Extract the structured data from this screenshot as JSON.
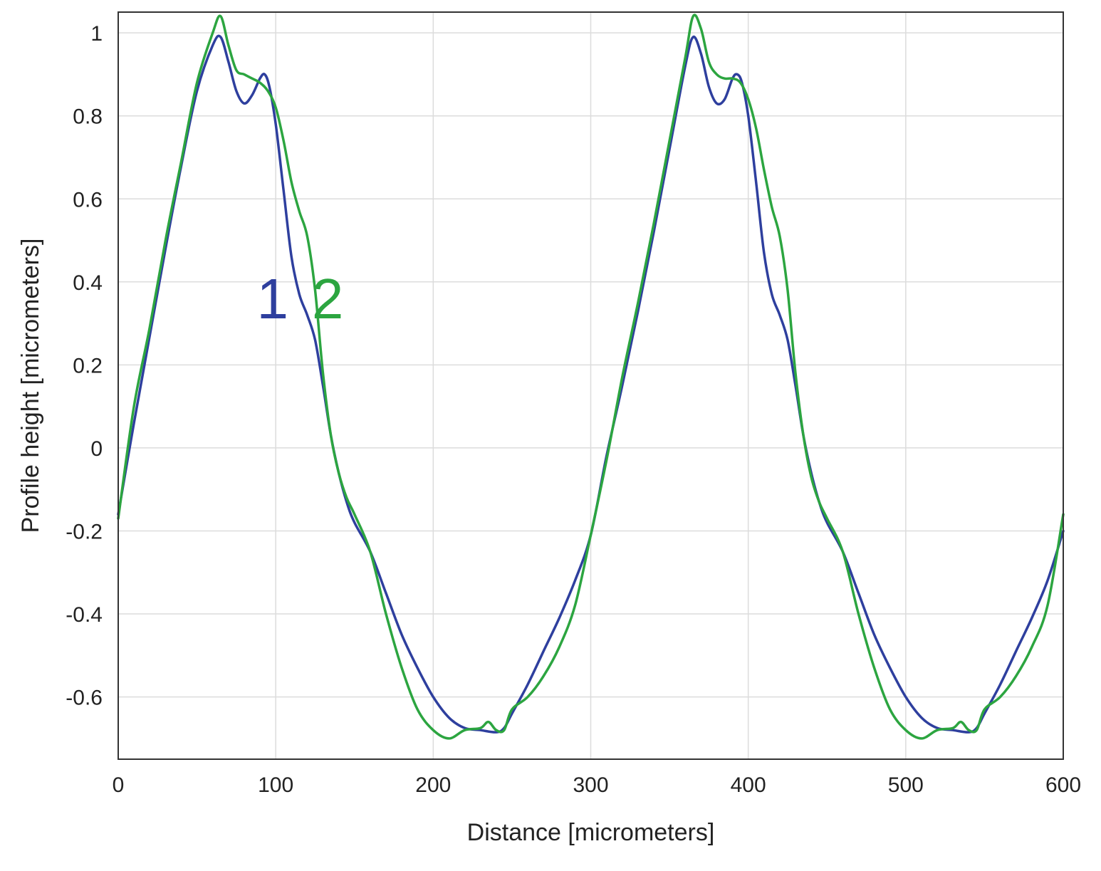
{
  "chart_data": {
    "type": "line",
    "title": "",
    "xlabel": "Distance [micrometers]",
    "ylabel": "Profile height [micrometers]",
    "xlim": [
      0,
      600
    ],
    "ylim": [
      -0.75,
      1.05
    ],
    "xticks": [
      0,
      100,
      200,
      300,
      400,
      500,
      600
    ],
    "yticks": [
      1,
      0.8,
      0.6,
      0.4,
      0.2,
      0,
      -0.2,
      -0.4,
      -0.6
    ],
    "xtick_labels": [
      "0",
      "100",
      "200",
      "300",
      "400",
      "500",
      "600"
    ],
    "ytick_labels": [
      "1",
      "0.8",
      "0.6",
      "0.4",
      "0.2",
      "0",
      "-0.2",
      "-0.4",
      "-0.6"
    ],
    "grid": true,
    "series": [
      {
        "name": "1",
        "color": "#2e3f9e",
        "label_pos": [
          98,
          0.36
        ],
        "x": [
          0,
          10,
          20,
          30,
          40,
          50,
          60,
          65,
          70,
          75,
          80,
          85,
          90,
          93,
          96,
          100,
          105,
          110,
          115,
          120,
          125,
          130,
          135,
          140,
          145,
          150,
          160,
          170,
          180,
          190,
          200,
          210,
          220,
          230,
          240,
          245,
          250,
          260,
          270,
          280,
          290,
          300,
          310,
          320,
          330,
          340,
          350,
          360,
          365,
          370,
          375,
          380,
          385,
          390,
          393,
          396,
          400,
          405,
          410,
          415,
          420,
          425,
          430,
          435,
          440,
          445,
          450,
          460,
          470,
          480,
          490,
          500,
          510,
          520,
          530,
          540,
          545,
          550,
          560,
          570,
          580,
          590,
          600
        ],
        "y": [
          -0.16,
          0.06,
          0.27,
          0.48,
          0.68,
          0.86,
          0.97,
          0.99,
          0.93,
          0.86,
          0.83,
          0.85,
          0.89,
          0.9,
          0.87,
          0.78,
          0.62,
          0.46,
          0.37,
          0.32,
          0.26,
          0.15,
          0.03,
          -0.06,
          -0.13,
          -0.18,
          -0.25,
          -0.35,
          -0.45,
          -0.53,
          -0.6,
          -0.65,
          -0.675,
          -0.68,
          -0.685,
          -0.675,
          -0.64,
          -0.57,
          -0.49,
          -0.41,
          -0.32,
          -0.21,
          -0.02,
          0.15,
          0.33,
          0.52,
          0.72,
          0.92,
          0.99,
          0.95,
          0.87,
          0.83,
          0.84,
          0.89,
          0.9,
          0.88,
          0.8,
          0.64,
          0.47,
          0.37,
          0.32,
          0.26,
          0.15,
          0.03,
          -0.06,
          -0.13,
          -0.18,
          -0.25,
          -0.35,
          -0.45,
          -0.53,
          -0.6,
          -0.65,
          -0.675,
          -0.68,
          -0.685,
          -0.675,
          -0.64,
          -0.57,
          -0.49,
          -0.41,
          -0.32,
          -0.2
        ]
      },
      {
        "name": "2",
        "color": "#2ca540",
        "label_pos": [
          133,
          0.36
        ],
        "x": [
          0,
          10,
          20,
          30,
          40,
          50,
          60,
          65,
          70,
          75,
          80,
          85,
          90,
          95,
          100,
          105,
          110,
          115,
          120,
          125,
          130,
          135,
          140,
          145,
          150,
          160,
          170,
          180,
          190,
          200,
          210,
          220,
          230,
          235,
          240,
          245,
          250,
          260,
          270,
          280,
          290,
          300,
          310,
          320,
          330,
          340,
          350,
          360,
          365,
          370,
          375,
          380,
          385,
          390,
          395,
          400,
          405,
          410,
          415,
          420,
          425,
          430,
          435,
          440,
          445,
          450,
          460,
          470,
          480,
          490,
          500,
          510,
          520,
          530,
          535,
          540,
          545,
          550,
          560,
          570,
          580,
          590,
          600
        ],
        "y": [
          -0.17,
          0.1,
          0.29,
          0.5,
          0.69,
          0.88,
          1.0,
          1.04,
          0.97,
          0.91,
          0.9,
          0.89,
          0.88,
          0.86,
          0.82,
          0.74,
          0.64,
          0.57,
          0.51,
          0.38,
          0.18,
          0.03,
          -0.06,
          -0.12,
          -0.16,
          -0.25,
          -0.4,
          -0.53,
          -0.63,
          -0.68,
          -0.7,
          -0.68,
          -0.675,
          -0.66,
          -0.68,
          -0.68,
          -0.63,
          -0.6,
          -0.55,
          -0.48,
          -0.38,
          -0.21,
          -0.03,
          0.17,
          0.35,
          0.54,
          0.74,
          0.94,
          1.04,
          1.01,
          0.93,
          0.9,
          0.89,
          0.89,
          0.88,
          0.84,
          0.77,
          0.67,
          0.58,
          0.51,
          0.38,
          0.18,
          0.03,
          -0.07,
          -0.13,
          -0.17,
          -0.25,
          -0.4,
          -0.53,
          -0.63,
          -0.68,
          -0.7,
          -0.68,
          -0.675,
          -0.66,
          -0.68,
          -0.68,
          -0.63,
          -0.6,
          -0.55,
          -0.48,
          -0.38,
          -0.16
        ]
      }
    ]
  }
}
